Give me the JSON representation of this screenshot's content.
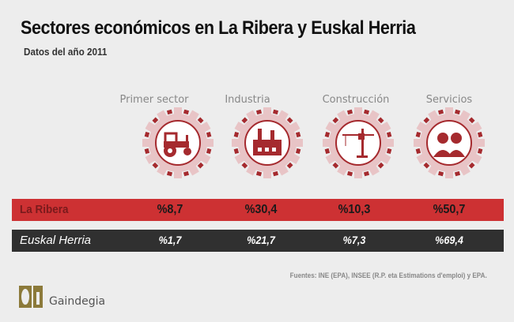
{
  "title": "Sectores económicos en La Ribera y Euskal Herria",
  "subtitle": "Datos del año 2011",
  "chart_data": {
    "type": "table",
    "categories": [
      "Primer sector",
      "Industria",
      "Construcción",
      "Servicios"
    ],
    "icons": [
      "tractor-icon",
      "factory-icon",
      "crane-icon",
      "people-icon"
    ],
    "series": [
      {
        "name": "La Ribera",
        "values": [
          8.7,
          30.4,
          10.3,
          50.7
        ],
        "labels": [
          "%8,7",
          "%30,4",
          "%10,3",
          "%50,7"
        ],
        "color": "#cd3133"
      },
      {
        "name": "Euskal Herria",
        "values": [
          1.7,
          21.7,
          7.3,
          69.4
        ],
        "labels": [
          "%1,7",
          "%21,7",
          "%7,3",
          "%69,4"
        ],
        "color": "#303030"
      }
    ],
    "unit": "%"
  },
  "colors": {
    "gear": "#e8c4c6",
    "icon": "#a52a2e"
  },
  "source": "Fuentes: INE (EPA), INSEE (R.P. eta Estimations d'emploi) y EPA.",
  "logo": {
    "text": "Gaindegia"
  }
}
